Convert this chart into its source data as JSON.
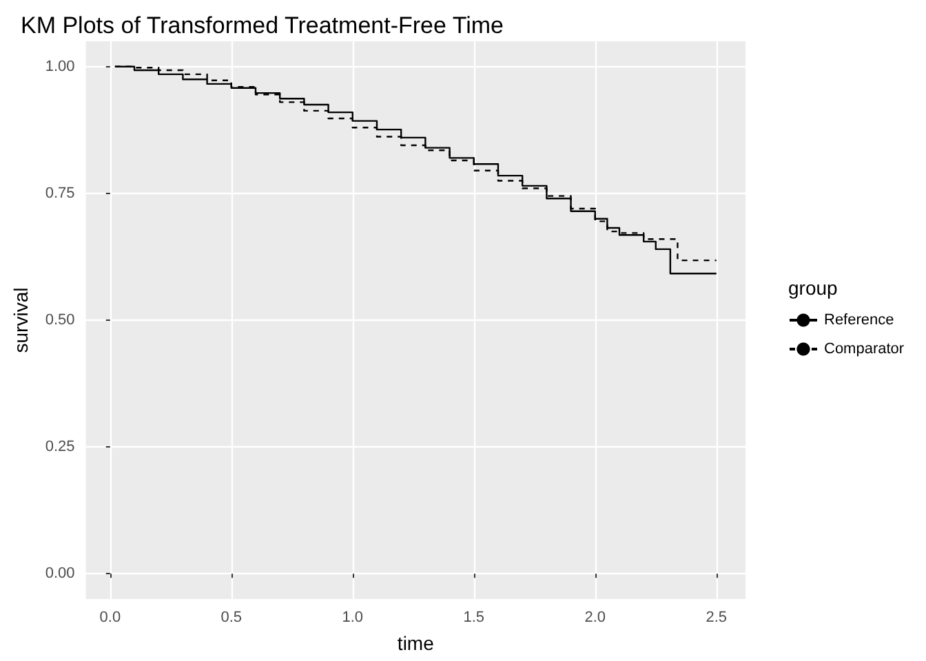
{
  "chart_data": {
    "type": "step",
    "title": "KM Plots of Transformed Treatment-Free Time",
    "xlabel": "time",
    "ylabel": "survival",
    "legend_title": "group",
    "legend": "right",
    "grid": true,
    "marker": "none",
    "xlim": [
      -0.1,
      2.62
    ],
    "xticks": [
      {
        "value": 0,
        "label": "0.0"
      },
      {
        "value": 0.5,
        "label": "0.5"
      },
      {
        "value": 1,
        "label": "1.0"
      },
      {
        "value": 1.5,
        "label": "1.5"
      },
      {
        "value": 2,
        "label": "2.0"
      },
      {
        "value": 2.5,
        "label": "2.5"
      }
    ],
    "ylim": [
      -0.05,
      1.05
    ],
    "yticks": [
      {
        "value": 0,
        "label": "0.00"
      },
      {
        "value": 0.25,
        "label": "0.25"
      },
      {
        "value": 0.5,
        "label": "0.50"
      },
      {
        "value": 0.75,
        "label": "0.75"
      },
      {
        "value": 1,
        "label": "1.00"
      }
    ],
    "series": [
      {
        "name": "Reference",
        "color": "#000000",
        "line_style": "solid",
        "x": [
          0.02,
          0.1,
          0.2,
          0.3,
          0.4,
          0.5,
          0.6,
          0.7,
          0.8,
          0.9,
          1.0,
          1.1,
          1.2,
          1.3,
          1.4,
          1.5,
          1.6,
          1.7,
          1.8,
          1.9,
          2.0,
          2.05,
          2.1,
          2.2,
          2.25,
          2.31,
          2.5
        ],
        "values": [
          1.0,
          0.993,
          0.985,
          0.975,
          0.966,
          0.958,
          0.948,
          0.937,
          0.925,
          0.91,
          0.893,
          0.876,
          0.86,
          0.84,
          0.82,
          0.808,
          0.785,
          0.765,
          0.74,
          0.715,
          0.7,
          0.682,
          0.668,
          0.655,
          0.64,
          0.592,
          0.592
        ]
      },
      {
        "name": "Comparator",
        "color": "#000000",
        "line_style": "dashed",
        "x": [
          0.02,
          0.1,
          0.2,
          0.3,
          0.4,
          0.5,
          0.6,
          0.7,
          0.8,
          0.9,
          1.0,
          1.1,
          1.2,
          1.3,
          1.4,
          1.5,
          1.6,
          1.7,
          1.8,
          1.9,
          2.0,
          2.05,
          2.1,
          2.2,
          2.34,
          2.5
        ],
        "values": [
          1.0,
          0.998,
          0.993,
          0.985,
          0.973,
          0.96,
          0.945,
          0.93,
          0.913,
          0.898,
          0.88,
          0.862,
          0.845,
          0.835,
          0.815,
          0.795,
          0.775,
          0.76,
          0.745,
          0.72,
          0.695,
          0.675,
          0.672,
          0.66,
          0.618,
          0.618
        ]
      }
    ]
  }
}
